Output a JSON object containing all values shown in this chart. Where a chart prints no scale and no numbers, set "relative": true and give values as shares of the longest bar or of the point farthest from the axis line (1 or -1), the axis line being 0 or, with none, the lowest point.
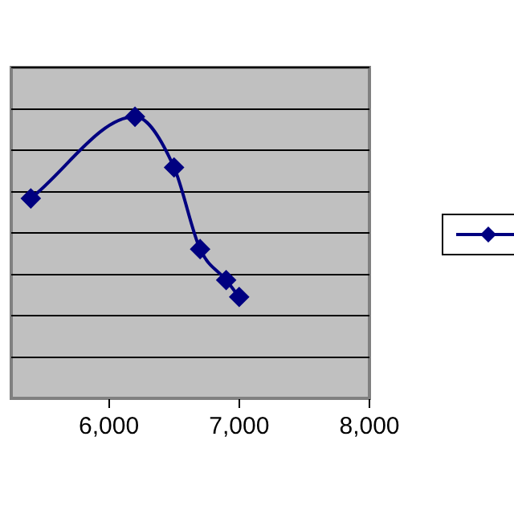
{
  "chart_data": {
    "type": "line",
    "relative": true,
    "x": [
      5400,
      6200,
      6500,
      6700,
      6900,
      7000
    ],
    "series": [
      {
        "color": "#000080",
        "values": [
          0.71,
          1,
          0.82,
          0.53,
          0.42,
          0.36
        ]
      }
    ],
    "xlim": [
      5250,
      8000
    ],
    "xticks": [
      {
        "value": 6000,
        "label": "6,000"
      },
      {
        "value": 7000,
        "label": "7,000"
      },
      {
        "value": 8000,
        "label": "8,000"
      }
    ],
    "grid": "y",
    "marker": "diamond",
    "line_style": "solid"
  }
}
